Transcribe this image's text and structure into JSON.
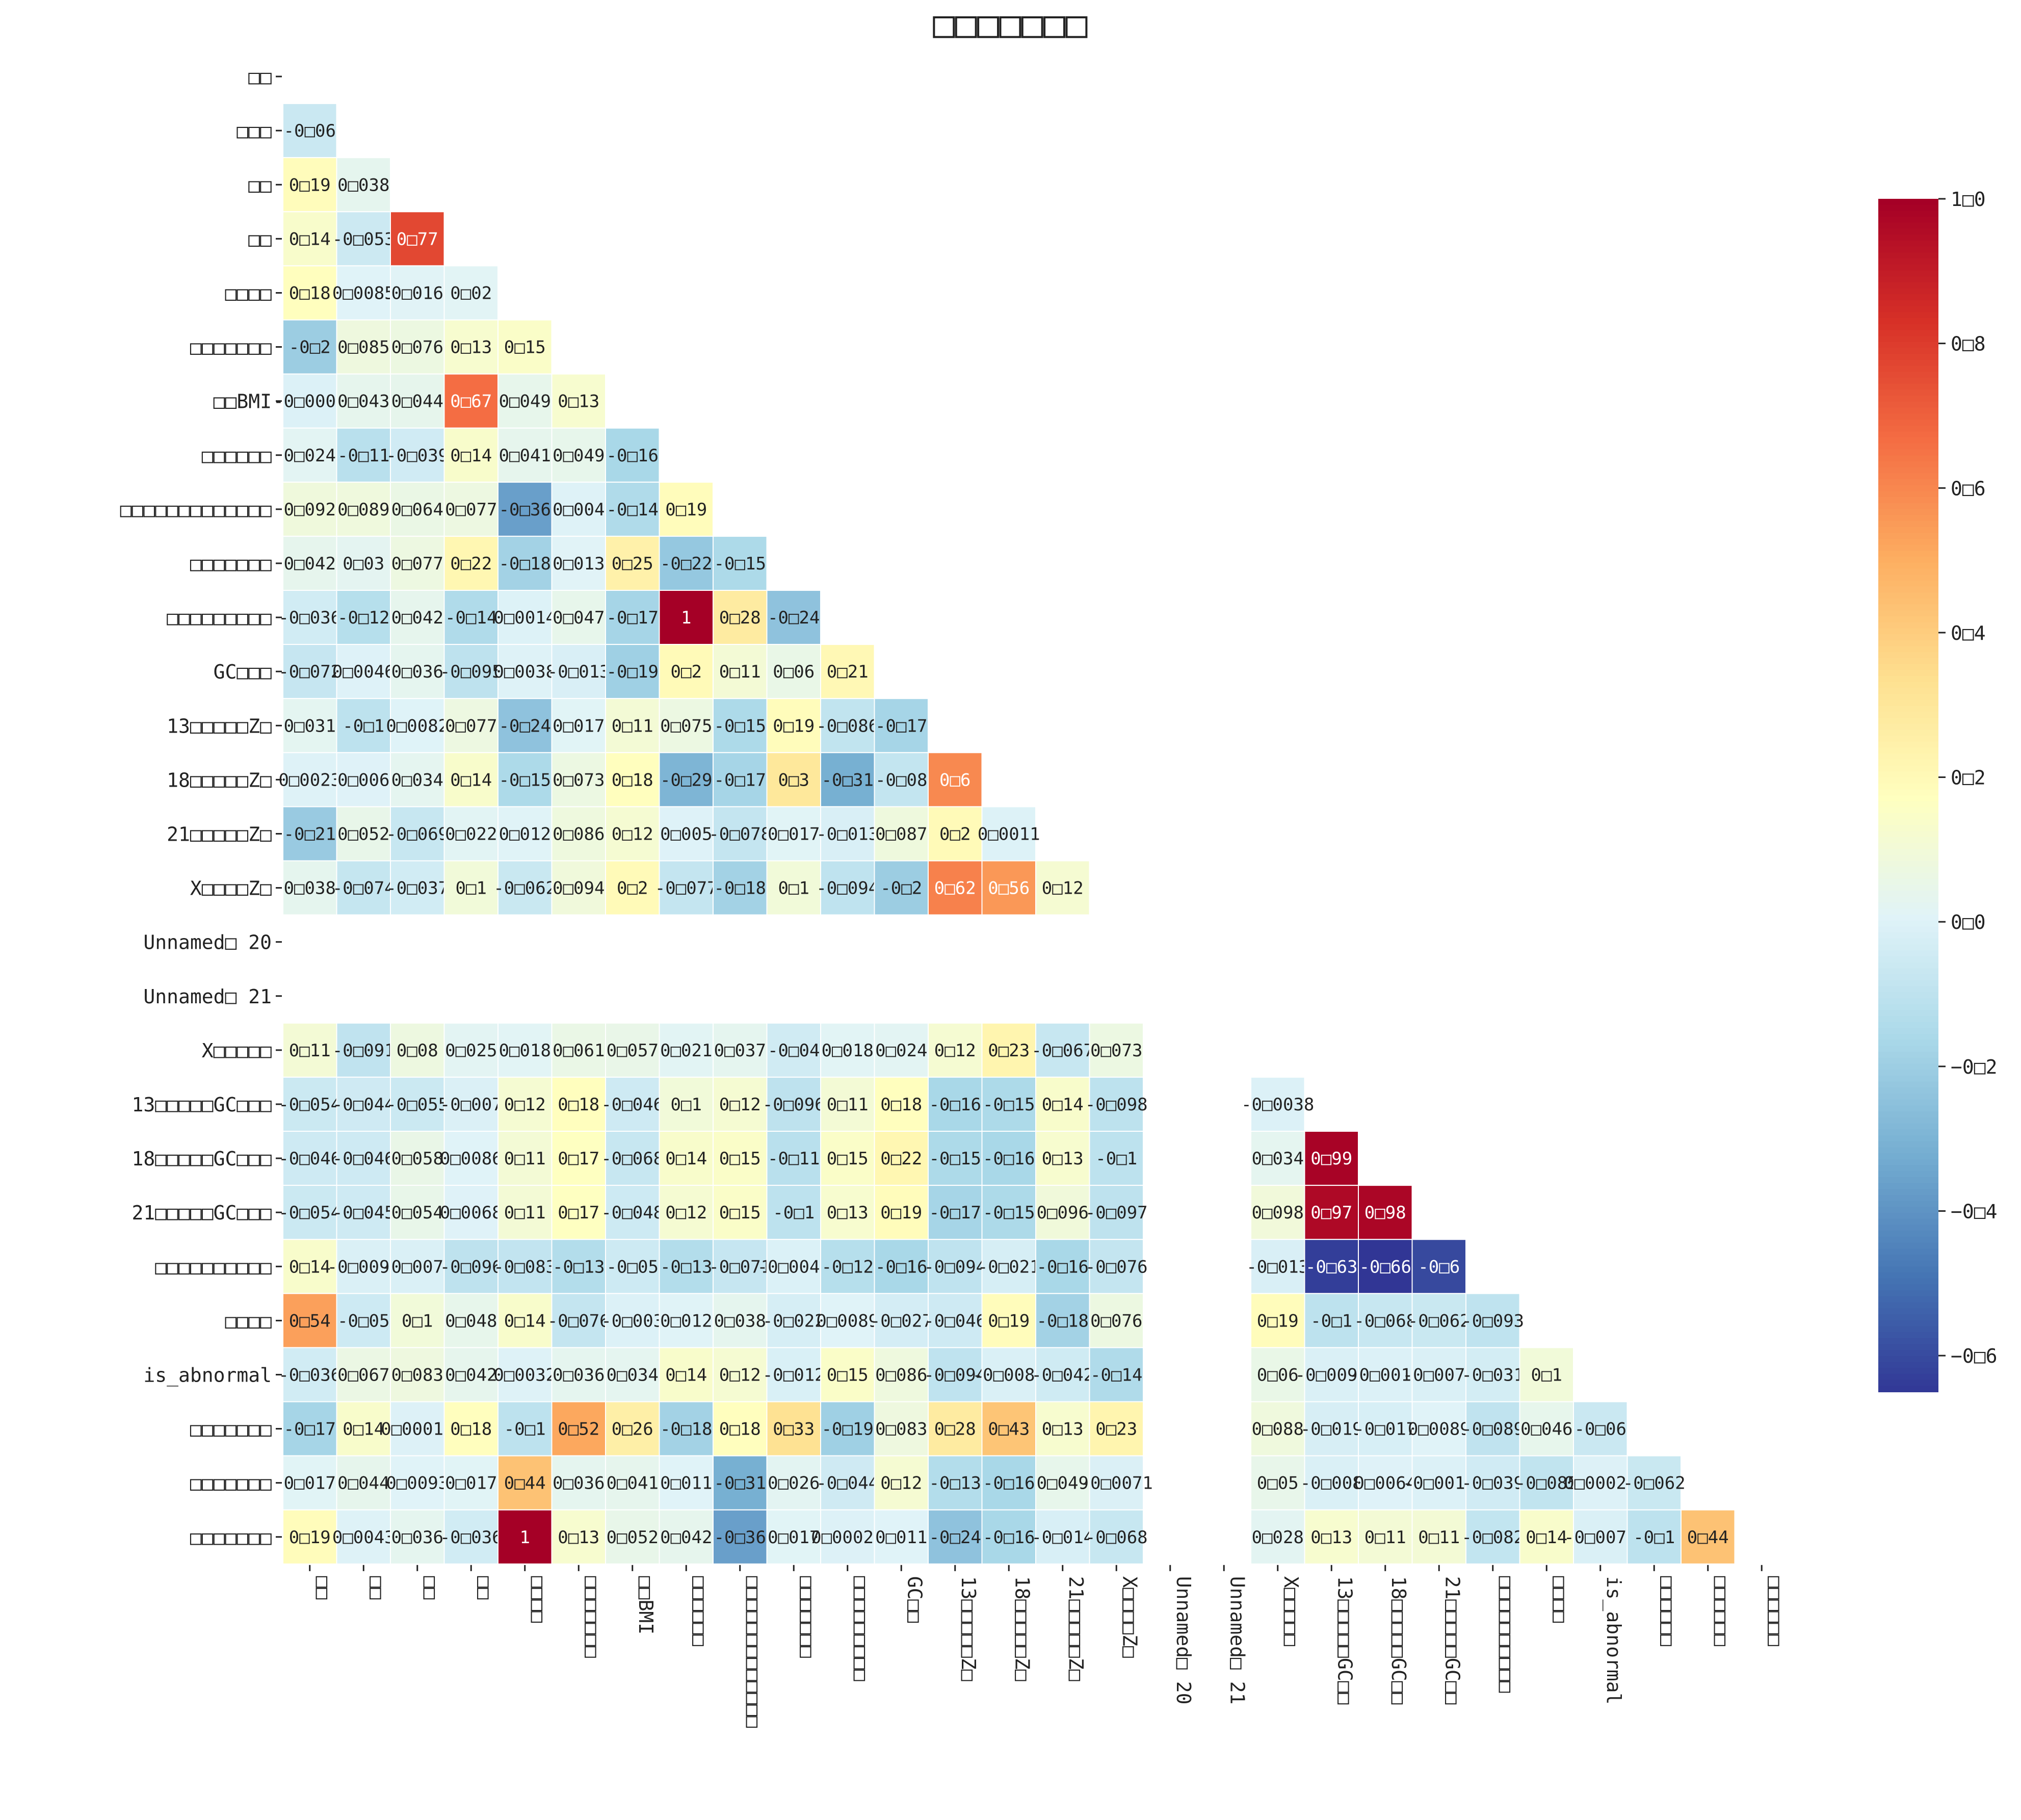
{
  "chart_data": {
    "type": "heatmap",
    "title": "□□□□□□□",
    "mask": "upper-triangle (lower triangle shown, diagonal hidden)",
    "labels": [
      "□□",
      "□□□",
      "□□",
      "□□",
      "□□□□",
      "□□□□□□□",
      "□□BMI",
      "□□□□□□",
      "□□□□□□□□□□□□□",
      "□□□□□□□",
      "□□□□□□□□□",
      "GC□□□",
      "13□□□□□Z□",
      "18□□□□□Z□",
      "21□□□□□Z□",
      "X□□□□Z□",
      "Unnamed□ 20",
      "Unnamed□ 21",
      "X□□□□□",
      "13□□□□□GC□□□",
      "18□□□□□GC□□□",
      "21□□□□□GC□□□",
      "□□□□□□□□□□",
      "□□□□",
      "is_abnormal",
      "□□□□□□□",
      "□□□□□□□",
      "□□□□□□□"
    ],
    "xtick_labels": [
      "□□",
      "□□",
      "□□",
      "□□",
      "□□□□",
      "□□□□□□□",
      "□□BMI",
      "□□□□□□",
      "□□□□□□□□□□□□□",
      "□□□□□□□",
      "□□□□□□□□□",
      "GC□□",
      "13□□□□□Z□",
      "18□□□□□Z□",
      "21□□□□□Z□",
      "X□□□□Z□",
      "Unnamed□ 20",
      "Unnamed□ 21",
      "X□□□□□",
      "13□□□□□GC□□",
      "18□□□□□GC□□",
      "21□□□□□GC□□",
      "□□□□□□□□□□",
      "□□□□",
      "is_abnormal",
      "□□□□□□",
      "□□□□□□",
      "□□□□□□"
    ],
    "ytick_labels": [
      "□□",
      "□□□",
      "□□",
      "□□",
      "□□□□",
      "□□□□□□□",
      "□□BMI",
      "□□□□□□",
      "□□□□□□□□□□□□□",
      "□□□□□□□",
      "□□□□□□□□□",
      "GC□□□",
      "13□□□□□Z□",
      "18□□□□□Z□",
      "21□□□□□Z□",
      "X□□□□Z□",
      "Unnamed□ 20",
      "Unnamed□ 21",
      "X□□□□□",
      "13□□□□□GC□□□",
      "18□□□□□GC□□□",
      "21□□□□□GC□□□",
      "□□□□□□□□□□",
      "□□□□",
      "is_abnormal",
      "□□□□□□□",
      "□□□□□□□",
      "□□□□□□□"
    ],
    "values": [
      [],
      [
        -0.06
      ],
      [
        0.19,
        0.038
      ],
      [
        0.14,
        -0.053,
        0.77
      ],
      [
        0.18,
        0.0085,
        0.016,
        0.02
      ],
      [
        -0.2,
        0.085,
        0.076,
        0.13,
        0.15
      ],
      [
        -0.0009,
        0.043,
        0.044,
        0.67,
        0.049,
        0.13
      ],
      [
        0.024,
        -0.11,
        -0.039,
        0.14,
        0.041,
        0.049,
        -0.16
      ],
      [
        0.092,
        0.089,
        0.064,
        0.077,
        -0.36,
        0.004,
        -0.14,
        0.19
      ],
      [
        0.042,
        0.03,
        0.077,
        0.22,
        -0.18,
        0.013,
        0.25,
        -0.22,
        -0.15
      ],
      [
        -0.036,
        -0.12,
        0.042,
        -0.14,
        0.0014,
        0.047,
        -0.17,
        1.0,
        0.28,
        -0.24
      ],
      [
        -0.072,
        0.0046,
        0.036,
        -0.095,
        0.0038,
        -0.013,
        -0.19,
        0.2,
        0.11,
        0.06,
        0.21
      ],
      [
        0.031,
        -0.1,
        0.0082,
        0.077,
        -0.24,
        0.017,
        0.11,
        0.075,
        -0.15,
        0.19,
        -0.086,
        -0.17
      ],
      [
        0.0023,
        0.006,
        0.034,
        0.14,
        -0.15,
        0.073,
        0.18,
        -0.29,
        -0.17,
        0.3,
        -0.31,
        -0.08,
        0.6
      ],
      [
        -0.21,
        0.052,
        -0.069,
        0.022,
        0.012,
        0.086,
        0.12,
        0.005,
        -0.078,
        0.017,
        -0.013,
        0.087,
        0.2,
        0.0011
      ],
      [
        0.038,
        -0.074,
        -0.037,
        0.1,
        -0.062,
        0.094,
        0.2,
        -0.077,
        -0.18,
        0.1,
        -0.094,
        -0.2,
        0.62,
        0.56,
        0.12
      ],
      [],
      [],
      [
        0.11,
        -0.091,
        0.08,
        0.025,
        0.018,
        0.061,
        0.057,
        0.021,
        0.037,
        -0.04,
        0.018,
        0.024,
        0.12,
        0.23,
        -0.067,
        0.073,
        null,
        null
      ],
      [
        -0.054,
        -0.044,
        -0.055,
        -0.007,
        0.12,
        0.18,
        -0.046,
        0.1,
        0.12,
        -0.096,
        0.11,
        0.18,
        -0.16,
        -0.15,
        0.14,
        -0.098,
        null,
        null,
        -0.0038
      ],
      [
        -0.046,
        -0.046,
        0.058,
        0.0086,
        0.11,
        0.17,
        -0.068,
        0.14,
        0.15,
        -0.11,
        0.15,
        0.22,
        -0.15,
        -0.16,
        0.13,
        -0.1,
        null,
        null,
        0.034,
        0.99
      ],
      [
        -0.054,
        -0.045,
        0.054,
        0.0068,
        0.11,
        0.17,
        -0.048,
        0.12,
        0.15,
        -0.1,
        0.13,
        0.19,
        -0.17,
        -0.15,
        0.096,
        -0.097,
        null,
        null,
        0.098,
        0.97,
        0.98
      ],
      [
        0.14,
        -0.0092,
        -0.0074,
        -0.096,
        -0.083,
        -0.13,
        -0.05,
        -0.13,
        -0.071,
        -0.0046,
        -0.12,
        -0.16,
        -0.094,
        -0.021,
        -0.16,
        -0.076,
        null,
        null,
        -0.013,
        -0.63,
        -0.66,
        -0.6
      ],
      [
        0.54,
        -0.05,
        0.1,
        0.048,
        0.14,
        -0.076,
        -0.003,
        0.012,
        0.038,
        -0.022,
        0.0089,
        -0.027,
        -0.046,
        0.19,
        -0.18,
        0.076,
        null,
        null,
        0.19,
        -0.1,
        -0.068,
        -0.062,
        -0.093
      ],
      [
        -0.036,
        0.067,
        0.083,
        0.042,
        0.0032,
        0.036,
        0.034,
        0.14,
        0.12,
        -0.012,
        0.15,
        0.086,
        -0.094,
        -0.0086,
        -0.042,
        -0.14,
        null,
        null,
        0.06,
        -0.0095,
        -0.0013,
        -0.0076,
        -0.031,
        0.1
      ],
      [
        -0.17,
        0.14,
        0.00017,
        0.18,
        -0.1,
        0.52,
        0.26,
        -0.18,
        0.18,
        0.33,
        -0.19,
        0.083,
        0.28,
        0.43,
        0.13,
        0.23,
        null,
        null,
        0.088,
        -0.019,
        -0.017,
        0.0089,
        -0.089,
        0.046,
        -0.06
      ],
      [
        0.017,
        0.044,
        0.0093,
        0.017,
        0.44,
        0.036,
        0.041,
        0.011,
        -0.31,
        0.026,
        -0.044,
        0.12,
        -0.13,
        -0.16,
        0.049,
        -0.0071,
        null,
        null,
        0.05,
        -0.008,
        0.0064,
        -0.0019,
        -0.039,
        -0.085,
        0.00028,
        -0.062
      ],
      [
        0.19,
        0.0043,
        0.036,
        -0.036,
        1.0,
        0.13,
        0.052,
        0.042,
        -0.36,
        0.017,
        0.00022,
        0.011,
        -0.24,
        -0.16,
        -0.014,
        -0.068,
        null,
        null,
        0.028,
        0.13,
        0.11,
        0.11,
        -0.082,
        0.14,
        -0.0079,
        -0.1,
        0.44
      ]
    ],
    "vmin": -0.65,
    "vmax": 1.0,
    "colormap": "RdYlBu_r",
    "colorbar_ticks": [
      "1□0",
      "0□8",
      "0□6",
      "0□4",
      "0□2",
      "0□0",
      "−0□2",
      "−0□4",
      "−0□6"
    ],
    "colorbar_tick_values": [
      1.0,
      0.8,
      0.6,
      0.4,
      0.2,
      0.0,
      -0.2,
      -0.4,
      -0.6
    ],
    "colorbar_position": "right",
    "xlabel": "",
    "ylabel": ""
  }
}
